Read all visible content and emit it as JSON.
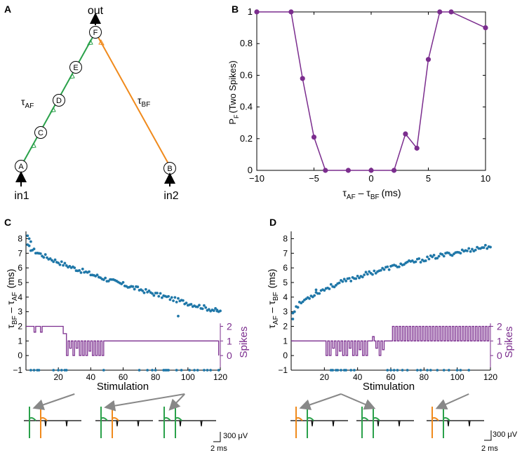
{
  "colors": {
    "purple": "#7b2d8e",
    "blue": "#1f77a8",
    "green": "#2aa14a",
    "orange": "#f08a1c",
    "axis": "#000000"
  },
  "panels": {
    "a": "A",
    "b": "B",
    "c": "C",
    "d": "D"
  },
  "diagram": {
    "out_label": "out",
    "in1_label": "in1",
    "in2_label": "in2",
    "nodes": [
      "A",
      "B",
      "C",
      "D",
      "E",
      "F"
    ],
    "tau_af": {
      "main": "τ",
      "sub": "AF"
    },
    "tau_bf": {
      "main": "τ",
      "sub": "BF"
    }
  },
  "chart_data": [
    {
      "panel": "B",
      "type": "line",
      "title": "",
      "ylabel": {
        "main": "P",
        "sub": "F",
        "rest": "(Two Spikes)"
      },
      "xlabel": {
        "t1": "τ",
        "s1": "AF",
        "dash": " – ",
        "t2": "τ",
        "s2": "BF",
        "unit": "(ms)"
      },
      "xlim": [
        -10,
        10
      ],
      "ylim": [
        0,
        1
      ],
      "xticks": [
        -10,
        -5,
        0,
        5,
        10
      ],
      "yticks": [
        0,
        0.2,
        0.4,
        0.6,
        0.8,
        1
      ],
      "ytick_labels": [
        "0",
        "0.2",
        "0.4",
        "0.6",
        "0.8",
        "1"
      ],
      "x": [
        -10,
        -7,
        -6,
        -5,
        -4,
        -2,
        0,
        2,
        3,
        4,
        5,
        6,
        7,
        10
      ],
      "y": [
        1,
        1,
        0.58,
        0.21,
        0,
        0,
        0,
        0,
        0.23,
        0.14,
        0.7,
        1,
        1,
        0.9
      ]
    },
    {
      "panel": "C",
      "type": "scatter",
      "ylabel": {
        "t1": "τ",
        "s1": "BF",
        "dash": " – ",
        "t2": "τ",
        "s2": "AF",
        "unit": "(ms)"
      },
      "xlabel": "Stimulation",
      "right_label": "Spikes",
      "xlim": [
        0,
        120
      ],
      "ylim": [
        -1,
        8.5
      ],
      "xticks": [
        20,
        40,
        60,
        80,
        100,
        120
      ],
      "yticks": [
        -1,
        0,
        1,
        2,
        3,
        4,
        5,
        6,
        7,
        8
      ],
      "spike_ticks": [
        0,
        1,
        2
      ],
      "trend": {
        "start": 7.6,
        "end": 3.0,
        "power": 0.75
      },
      "outliers": [
        [
          1,
          8.2
        ],
        [
          2,
          8.0
        ],
        [
          3,
          7.8
        ],
        [
          94,
          2.7
        ],
        [
          118,
          3.05
        ]
      ],
      "spikes": [
        [
          0,
          2
        ],
        [
          5,
          2
        ],
        [
          5,
          1.6
        ],
        [
          6,
          2
        ],
        [
          9,
          2
        ],
        [
          9,
          1.6
        ],
        [
          10,
          2
        ],
        [
          22,
          2
        ],
        [
          23,
          1.5
        ],
        [
          24,
          1.5
        ],
        [
          25,
          0
        ],
        [
          26,
          1
        ],
        [
          27,
          0.5
        ],
        [
          28,
          1
        ],
        [
          29,
          0
        ],
        [
          30,
          1
        ],
        [
          31,
          0.5
        ],
        [
          32,
          1
        ],
        [
          33,
          0
        ],
        [
          34,
          1
        ],
        [
          35,
          0
        ],
        [
          36,
          1
        ],
        [
          37,
          0
        ],
        [
          38,
          1
        ],
        [
          39,
          0.3
        ],
        [
          40,
          1
        ],
        [
          41,
          0
        ],
        [
          42,
          1
        ],
        [
          43,
          0
        ],
        [
          44,
          1
        ],
        [
          45,
          0
        ],
        [
          46,
          1
        ],
        [
          47,
          0
        ],
        [
          48,
          1
        ],
        [
          118,
          1
        ],
        [
          119,
          0
        ]
      ],
      "undefined_points": [
        3,
        5,
        7,
        8,
        17,
        20,
        22,
        24,
        25,
        48,
        70,
        75,
        78,
        80,
        85,
        86,
        87,
        88,
        93,
        96,
        101,
        104,
        106,
        110,
        112,
        114,
        119
      ],
      "trace_arrows": [
        {
          "x": 30,
          "target": 0
        },
        {
          "x": 98,
          "target": 1
        },
        {
          "x": 98,
          "target": 2
        }
      ]
    },
    {
      "panel": "D",
      "type": "scatter",
      "ylabel": {
        "t1": "τ",
        "s1": "AF",
        "dash": " – ",
        "t2": "τ",
        "s2": "BF",
        "unit": "(ms)"
      },
      "xlabel": "Stimulation",
      "right_label": "Spikes",
      "xlim": [
        0,
        120
      ],
      "ylim": [
        -1,
        8.5
      ],
      "xticks": [
        20,
        40,
        60,
        80,
        100,
        120
      ],
      "yticks": [
        -1,
        0,
        1,
        2,
        3,
        4,
        5,
        6,
        7,
        8
      ],
      "spike_ticks": [
        0,
        1,
        2
      ],
      "trend": {
        "start": 2.5,
        "end": 7.5,
        "power": 0.5
      },
      "outliers": [
        [
          1,
          2.5
        ],
        [
          2,
          3.0
        ],
        [
          4,
          3.3
        ],
        [
          15,
          4.5
        ]
      ],
      "spikes": [
        [
          0,
          1
        ],
        [
          20,
          1
        ],
        [
          21,
          0
        ],
        [
          22,
          1
        ],
        [
          23,
          0
        ],
        [
          24,
          1
        ],
        [
          25,
          0.5
        ],
        [
          26,
          1
        ],
        [
          27,
          0
        ],
        [
          28,
          1
        ],
        [
          29,
          0.3
        ],
        [
          30,
          1
        ],
        [
          31,
          0
        ],
        [
          32,
          1
        ],
        [
          33,
          0
        ],
        [
          34,
          1
        ],
        [
          35,
          0.5
        ],
        [
          36,
          1
        ],
        [
          37,
          0
        ],
        [
          38,
          1
        ],
        [
          39,
          0
        ],
        [
          40,
          1
        ],
        [
          41,
          0.4
        ],
        [
          42,
          1
        ],
        [
          43,
          0
        ],
        [
          44,
          1
        ],
        [
          45,
          0
        ],
        [
          46,
          1
        ],
        [
          48,
          1
        ],
        [
          49,
          1.3
        ],
        [
          50,
          1
        ],
        [
          51,
          0.5
        ],
        [
          52,
          1
        ],
        [
          53,
          0
        ],
        [
          54,
          1
        ],
        [
          55,
          0.4
        ],
        [
          56,
          1
        ],
        [
          58,
          1
        ],
        [
          60,
          1
        ],
        [
          61,
          2
        ],
        [
          62,
          1
        ],
        [
          63,
          2
        ],
        [
          64,
          1
        ],
        [
          65,
          2
        ],
        [
          66,
          1
        ],
        [
          67,
          2
        ],
        [
          68,
          1
        ],
        [
          69,
          2
        ],
        [
          70,
          1
        ],
        [
          71,
          2
        ],
        [
          72,
          1
        ],
        [
          73,
          2
        ],
        [
          74,
          1
        ],
        [
          75,
          2
        ],
        [
          76,
          1
        ],
        [
          77,
          2
        ],
        [
          78,
          1
        ],
        [
          79,
          2
        ],
        [
          80,
          1
        ],
        [
          81,
          2
        ],
        [
          82,
          1
        ],
        [
          83,
          2
        ],
        [
          84,
          1
        ],
        [
          85,
          2
        ],
        [
          86,
          1
        ],
        [
          87,
          2
        ],
        [
          88,
          1
        ],
        [
          89,
          2
        ],
        [
          90,
          1
        ],
        [
          91,
          2
        ],
        [
          92,
          1
        ],
        [
          93,
          2
        ],
        [
          94,
          1
        ],
        [
          95,
          2
        ],
        [
          96,
          1
        ],
        [
          97,
          2
        ],
        [
          98,
          1
        ],
        [
          99,
          2
        ],
        [
          100,
          1
        ],
        [
          101,
          2
        ],
        [
          102,
          1
        ],
        [
          103,
          2
        ],
        [
          104,
          1
        ],
        [
          105,
          2
        ],
        [
          106,
          1
        ],
        [
          107,
          2
        ],
        [
          108,
          1
        ],
        [
          109,
          2
        ],
        [
          110,
          1
        ],
        [
          111,
          2
        ],
        [
          112,
          1
        ],
        [
          113,
          2
        ],
        [
          114,
          1
        ],
        [
          115,
          2
        ],
        [
          116,
          1
        ],
        [
          117,
          2
        ],
        [
          118,
          1
        ],
        [
          119,
          2
        ],
        [
          120,
          2
        ]
      ],
      "undefined_points": [
        24,
        25,
        27,
        28,
        30,
        32,
        33,
        36,
        38,
        58,
        60,
        62,
        64,
        67,
        70,
        76,
        78,
        82,
        84,
        88,
        92,
        95,
        100,
        102,
        107
      ],
      "trace_arrows": [
        {
          "x": 30,
          "target": 0
        },
        {
          "x": 30,
          "target": 1
        },
        {
          "x": 107,
          "target": 2
        }
      ]
    }
  ],
  "traces_c": [
    [
      "green",
      "orange"
    ],
    [
      "green",
      "orange"
    ],
    [
      "green",
      "green"
    ]
  ],
  "traces_d": [
    [
      "orange",
      "green"
    ],
    [
      "green",
      "green"
    ],
    [
      "orange",
      "green"
    ]
  ],
  "scale_bar": {
    "voltage": "300 μV",
    "time": "2 ms"
  }
}
